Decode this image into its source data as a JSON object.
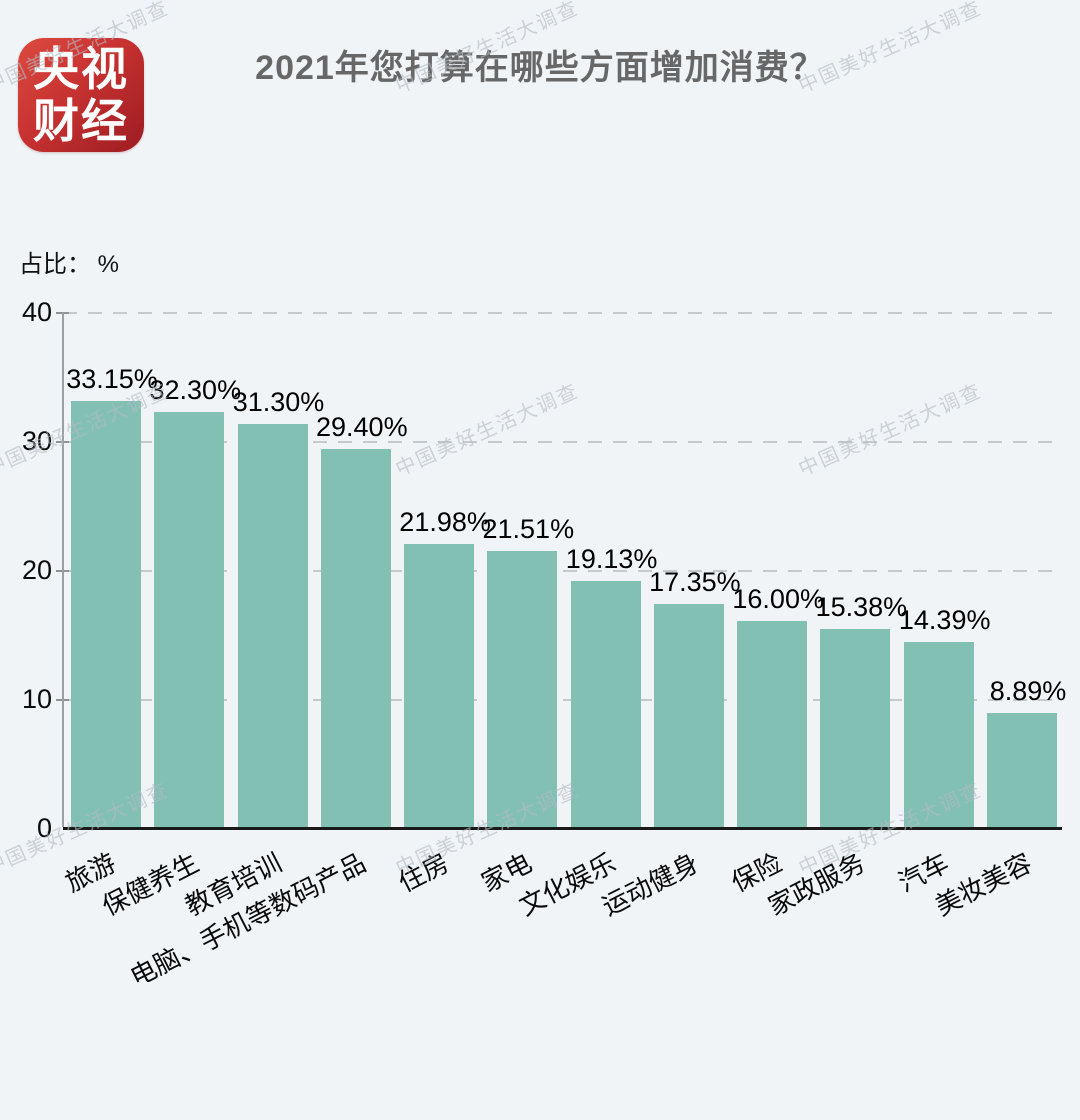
{
  "title": "2021年您打算在哪些方面增加消费？",
  "logo": {
    "name": "央视财经",
    "line1": "央视",
    "line2": "财经"
  },
  "watermark": {
    "text": "中国美好生活大调查"
  },
  "chart_data": {
    "type": "bar",
    "title": "2021年您打算在哪些方面增加消费？",
    "xlabel": "",
    "ylabel": "占比： %",
    "ylim": [
      0,
      40
    ],
    "yticks": [
      40,
      30,
      20,
      10,
      0
    ],
    "grid": "horizontal-dashed",
    "legend_position": "none",
    "categories": [
      "旅游",
      "保健养生",
      "教育培训",
      "电脑、手机等数码产品",
      "住房",
      "家电",
      "文化娱乐",
      "运动健身",
      "保险",
      "家政服务",
      "汽车",
      "美妆美容"
    ],
    "values": [
      33.15,
      32.3,
      31.3,
      29.4,
      21.98,
      21.51,
      19.13,
      17.35,
      16.0,
      15.38,
      14.39,
      8.89
    ],
    "value_labels": [
      "33.15%",
      "32.30%",
      "31.30%",
      "29.40%",
      "21.98%",
      "21.51%",
      "19.13%",
      "17.35%",
      "16.00%",
      "15.38%",
      "14.39%",
      "8.89%"
    ]
  },
  "colors": {
    "background": "#f0f4f7",
    "bar": "#82c0b4",
    "logo_red_light": "#dd4a40",
    "logo_red_dark": "#9c1c22",
    "title_text": "#676767",
    "y_axis_line": "#9aa0a4",
    "x_axis_line": "#1a1a1a",
    "gridline": "#c6c9cb",
    "watermark": "#d4d9de"
  }
}
